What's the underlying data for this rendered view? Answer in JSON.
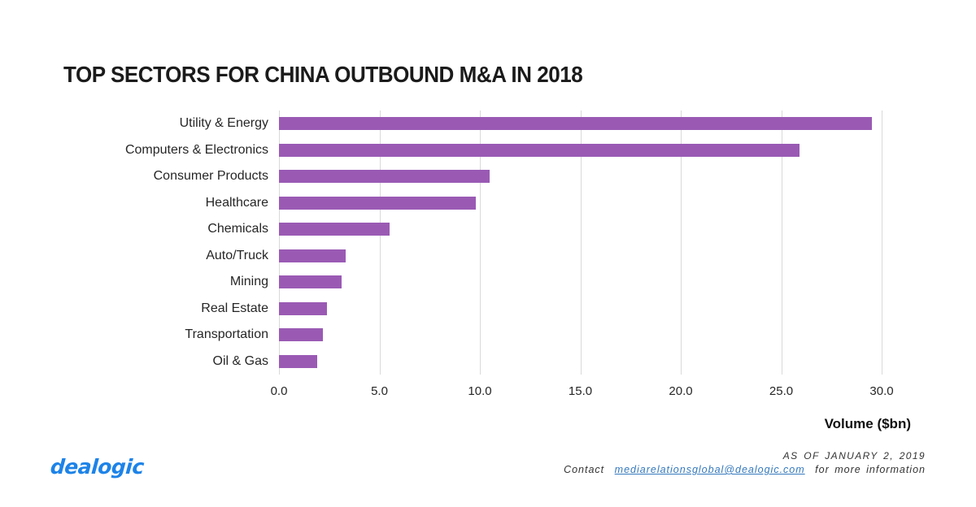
{
  "chart_data": {
    "type": "bar",
    "orientation": "horizontal",
    "title": "TOP SECTORS FOR CHINA OUTBOUND M&A IN 2018",
    "categories": [
      "Utility & Energy",
      "Computers & Electronics",
      "Consumer Products",
      "Healthcare",
      "Chemicals",
      "Auto/Truck",
      "Mining",
      "Real Estate",
      "Transportation",
      "Oil & Gas"
    ],
    "values": [
      29.5,
      25.9,
      10.5,
      9.8,
      5.5,
      3.3,
      3.1,
      2.4,
      2.2,
      1.9
    ],
    "xlabel": "Volume ($bn)",
    "xlim": [
      0,
      30
    ],
    "xticks": [
      0,
      5,
      10,
      15,
      20,
      25,
      30
    ],
    "xtick_labels": [
      "0.0",
      "5.0",
      "10.0",
      "15.0",
      "20.0",
      "25.0",
      "30.0"
    ],
    "grid": true,
    "legend": false
  },
  "footer": {
    "logo": "dealogic",
    "as_of": "AS OF JANUARY 2, 2019",
    "contact": {
      "prefix": "Contact",
      "email": "mediarelationsglobal@dealogic.com",
      "suffix": "for more information"
    }
  },
  "colors": {
    "bar": "#9a5ab4",
    "gridline": "#d9d9d9",
    "logo_blue": "#1d83e8",
    "link_blue": "#3579bd",
    "text": "#1b1b1b"
  }
}
